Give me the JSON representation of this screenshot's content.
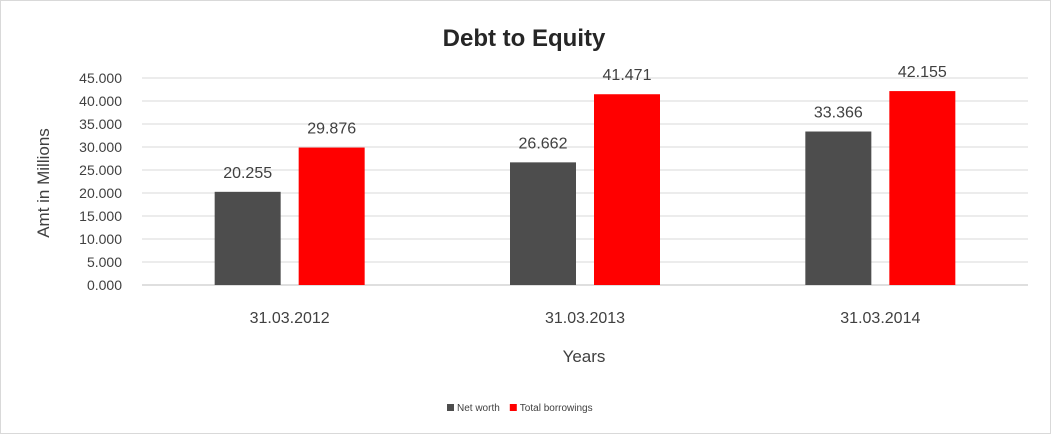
{
  "chart_data": {
    "type": "bar",
    "title": "Debt to Equity",
    "xlabel": "Years",
    "ylabel": "Amt in Millions",
    "categories": [
      "31.03.2012",
      "31.03.2013",
      "31.03.2014"
    ],
    "ylim": [
      0,
      45
    ],
    "yticks": [
      "0.000",
      "5.000",
      "10.000",
      "15.000",
      "20.000",
      "25.000",
      "30.000",
      "35.000",
      "40.000",
      "45.000"
    ],
    "grid": true,
    "legend_position": "bottom",
    "series": [
      {
        "name": "Net worth",
        "values": [
          20.255,
          26.662,
          33.366
        ],
        "labels": [
          "20.255",
          "26.662",
          "33.366"
        ],
        "color": "#4d4d4d"
      },
      {
        "name": "Total borrowings",
        "values": [
          29.876,
          41.471,
          42.155
        ],
        "labels": [
          "29.876",
          "41.471",
          "42.155"
        ],
        "color": "#ff0000"
      }
    ]
  }
}
